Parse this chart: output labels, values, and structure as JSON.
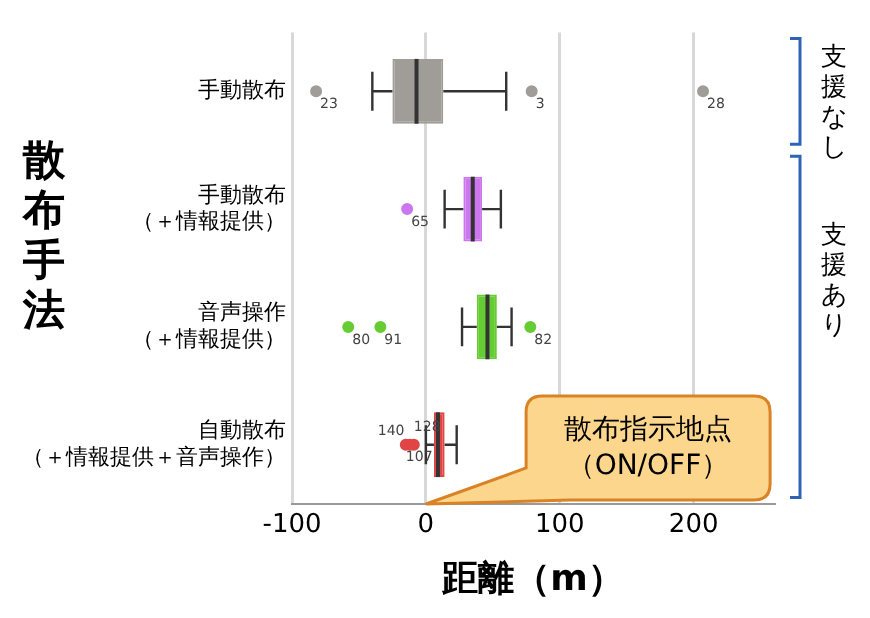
{
  "chart_data": {
    "type": "box",
    "orientation": "horizontal",
    "xlabel": "距離（m）",
    "ylabel": "散布手法",
    "categories": [
      "手動散布",
      "手動散布（＋情報提供）",
      "音声操作（＋情報提供）",
      "自動散布（＋情報提供＋音声操作）"
    ],
    "colors": [
      "#a09c98",
      "#cc77ee",
      "#66cc33",
      "#e04545"
    ],
    "boxes": [
      {
        "low": -40,
        "q1": -25,
        "median": -7,
        "q3": 13,
        "high": 60,
        "outliers": [
          -82,
          79,
          207
        ]
      },
      {
        "low": 14,
        "q1": 28,
        "median": 35,
        "q3": 42,
        "high": 56,
        "outliers": [
          -14
        ]
      },
      {
        "low": 27,
        "q1": 38,
        "median": 46,
        "q3": 53,
        "high": 64,
        "outliers": [
          -58,
          -34,
          78
        ]
      },
      {
        "low": 0,
        "q1": 6,
        "median": 9,
        "q3": 14,
        "high": 23,
        "outliers": [
          -15,
          -12,
          -9
        ]
      }
    ],
    "xlim": [
      -100,
      260
    ],
    "xticks": [
      -100,
      0,
      100,
      200
    ],
    "grid": "x",
    "marker": "circle",
    "legend": false,
    "annotations": [
      "23",
      "3",
      "28",
      "65",
      "80",
      "91",
      "82",
      "140",
      "128",
      "107",
      "散布指示地点（ON/OFF）",
      "支援なし",
      "支援あり"
    ]
  }
}
